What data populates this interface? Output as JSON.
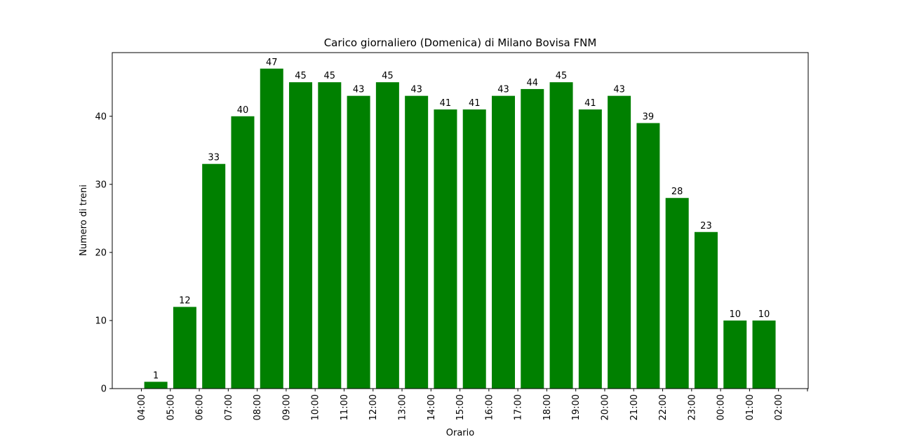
{
  "chart_data": {
    "type": "bar",
    "title": "Carico giornaliero (Domenica) di Milano Bovisa FNM",
    "xlabel": "Orario",
    "ylabel": "Numero di treni",
    "x_tick_labels": [
      "04:00",
      "05:00",
      "06:00",
      "07:00",
      "08:00",
      "09:00",
      "10:00",
      "11:00",
      "12:00",
      "13:00",
      "14:00",
      "15:00",
      "16:00",
      "17:00",
      "18:00",
      "19:00",
      "20:00",
      "21:00",
      "22:00",
      "23:00",
      "00:00",
      "01:00",
      "02:00"
    ],
    "values": [
      1,
      12,
      33,
      40,
      47,
      45,
      45,
      43,
      45,
      43,
      41,
      41,
      43,
      44,
      45,
      41,
      43,
      39,
      28,
      23,
      10,
      10
    ],
    "bar_labels": [
      "1",
      "12",
      "33",
      "40",
      "47",
      "45",
      "45",
      "43",
      "45",
      "43",
      "41",
      "41",
      "43",
      "44",
      "45",
      "41",
      "43",
      "39",
      "28",
      "23",
      "10",
      "10"
    ],
    "ylim": [
      0,
      49.35
    ],
    "y_ticks": [
      0,
      10,
      20,
      30,
      40
    ],
    "y_tick_labels": [
      "0",
      "10",
      "20",
      "30",
      "40"
    ],
    "bar_color": "#008000",
    "grid": false,
    "legend": "none"
  }
}
